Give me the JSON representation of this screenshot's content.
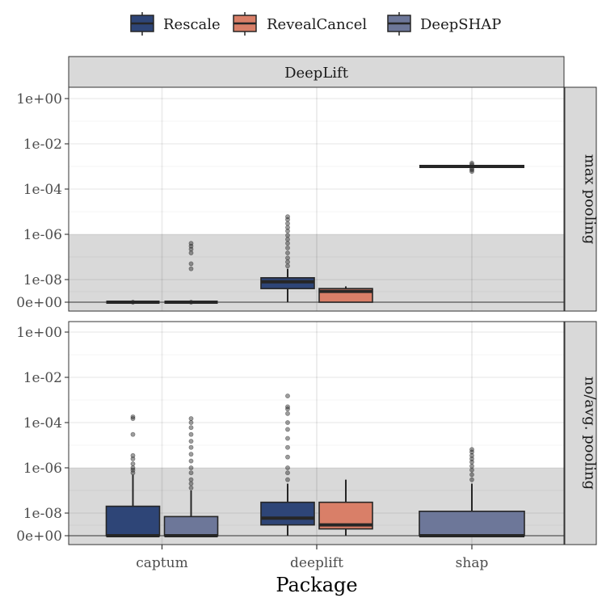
{
  "chart_data": {
    "type": "boxplot",
    "title": "",
    "xlabel": "Package",
    "ylabel": "",
    "y_scale": "pseudo-log",
    "y_ticks": [
      "0e+00",
      "1e-08",
      "1e-06",
      "1e-04",
      "1e-02",
      "1e+00"
    ],
    "categories": [
      "captum",
      "deeplift",
      "shap"
    ],
    "legend": {
      "position": "top",
      "entries": [
        {
          "name": "Rescale",
          "color": "#2E4577"
        },
        {
          "name": "RevealCancel",
          "color": "#D97F68"
        },
        {
          "name": "DeepSHAP",
          "color": "#6D7799"
        }
      ]
    },
    "facet_column": "DeepLift",
    "facet_rows": [
      "max pooling",
      "no/avg. pooling"
    ],
    "shaded_band": {
      "from": "0e+00",
      "to": "1e-06",
      "color": "#d9d9d9"
    },
    "grid": true,
    "panels": [
      {
        "row": "max pooling",
        "boxes": [
          {
            "category": "captum",
            "series": "Rescale",
            "q1": 0,
            "median": 0,
            "q3": 0,
            "whisker_low": 0,
            "whisker_high": 0,
            "outliers": [
              1e-09
            ]
          },
          {
            "category": "captum",
            "series": "DeepSHAP",
            "q1": 0,
            "median": 0,
            "q3": 0,
            "whisker_low": 0,
            "whisker_high": 0,
            "outliers": [
              1e-09,
              3e-08,
              5e-08,
              1.5e-07,
              2.2e-07,
              3e-07,
              4e-07
            ]
          },
          {
            "category": "deeplift",
            "series": "Rescale",
            "q1": 4e-09,
            "median": 8e-09,
            "q3": 1.2e-08,
            "whisker_low": 1e-09,
            "whisker_high": 3e-08,
            "outliers": [
              4e-08,
              6e-08,
              9e-08,
              1.5e-07,
              2.5e-07,
              4e-07,
              6e-07,
              9e-07,
              1.4e-06,
              2e-06,
              3e-06,
              4.5e-06,
              6e-06
            ]
          },
          {
            "category": "deeplift",
            "series": "RevealCancel",
            "q1": 1e-09,
            "median": 3e-09,
            "q3": 4e-09,
            "whisker_low": 1e-09,
            "whisker_high": 5e-09,
            "outliers": []
          },
          {
            "category": "shap",
            "series": "DeepSHAP",
            "q1": 0.001,
            "median": 0.001,
            "q3": 0.001,
            "whisker_low": 0.001,
            "whisker_high": 0.001,
            "outliers": [
              0.0006,
              0.0007,
              0.0008,
              0.0012,
              0.0014
            ]
          }
        ]
      },
      {
        "row": "no/avg. pooling",
        "boxes": [
          {
            "category": "captum",
            "series": "Rescale",
            "q1": 1e-09,
            "median": 1e-09,
            "q3": 2e-08,
            "whisker_low": 0,
            "whisker_high": 5e-07,
            "outliers": [
              6e-07,
              8e-07,
              1e-06,
              1.5e-06,
              2.5e-06,
              3.5e-06,
              3e-05,
              0.00015,
              0.00018
            ]
          },
          {
            "category": "captum",
            "series": "DeepSHAP",
            "q1": 1e-09,
            "median": 1e-09,
            "q3": 7e-09,
            "whisker_low": 0,
            "whisker_high": 1e-07,
            "outliers": [
              1.3e-07,
              2e-07,
              3e-07,
              6e-07,
              1e-06,
              2e-06,
              4e-06,
              8e-06,
              1.5e-05,
              3e-05,
              6e-05,
              0.0001,
              0.00015
            ]
          },
          {
            "category": "deeplift",
            "series": "Rescale",
            "q1": 3e-09,
            "median": 6e-09,
            "q3": 3e-08,
            "whisker_low": 0,
            "whisker_high": 2e-07,
            "outliers": [
              3e-07,
              6e-07,
              1e-06,
              3e-06,
              8e-06,
              2e-05,
              5e-05,
              0.0001,
              0.00025,
              0.0004,
              0.0005,
              0.0015
            ]
          },
          {
            "category": "deeplift",
            "series": "RevealCancel",
            "q1": 2e-09,
            "median": 3e-09,
            "q3": 3e-08,
            "whisker_low": 0,
            "whisker_high": 3e-07,
            "outliers": []
          },
          {
            "category": "shap",
            "series": "DeepSHAP",
            "q1": 1e-09,
            "median": 1e-09,
            "q3": 1.2e-08,
            "whisker_low": 0,
            "whisker_high": 2e-07,
            "outliers": [
              3e-07,
              5e-07,
              8e-07,
              1.2e-06,
              1.8e-06,
              2.5e-06,
              3.5e-06,
              5e-06,
              6.5e-06
            ]
          }
        ]
      }
    ]
  }
}
